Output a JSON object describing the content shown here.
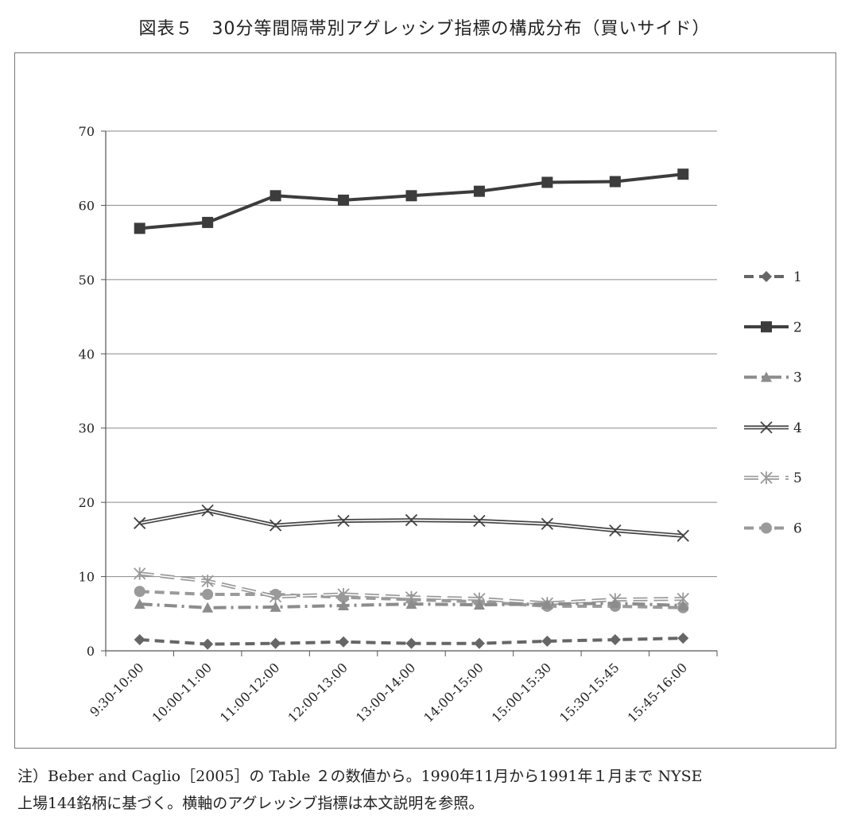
{
  "title": "図表５　30分等間隔帯別アグレッシブ指標の構成分布（買いサイド）",
  "note": {
    "line1": "注）Beber and Caglio［2005］の Table ２の数値から。1990年11月から1991年１月まで NYSE",
    "line2": "上場144銘柄に基づく。横軸のアグレッシブ指標は本文説明を参照。"
  },
  "chart_data": {
    "type": "line",
    "title": "図表５　30分等間隔帯別アグレッシブ指標の構成分布（買いサイド）",
    "xlabel": "",
    "ylabel": "",
    "categories": [
      "9:30-10:00",
      "10:00-11:00",
      "11:00-12:00",
      "12:00-13:00",
      "13:00-14:00",
      "14:00-15:00",
      "15:00-15:30",
      "15:30-15:45",
      "15:45-16:00"
    ],
    "ylim": [
      0,
      70
    ],
    "yticks": [
      0,
      10,
      20,
      30,
      40,
      50,
      60,
      70
    ],
    "grid": "horizontal",
    "legend_position": "right",
    "series": [
      {
        "name": "1",
        "marker": "diamond",
        "line": "dashed",
        "color": "#666666",
        "values": [
          1.5,
          0.9,
          1.0,
          1.2,
          1.0,
          1.0,
          1.3,
          1.5,
          1.7
        ]
      },
      {
        "name": "2",
        "marker": "square",
        "line": "solid",
        "color": "#3c3c3c",
        "values": [
          56.9,
          57.7,
          61.3,
          60.7,
          61.3,
          61.9,
          63.1,
          63.2,
          64.2
        ]
      },
      {
        "name": "3",
        "marker": "triangle",
        "line": "dash-dot",
        "color": "#8c8c8c",
        "values": [
          6.3,
          5.8,
          5.9,
          6.1,
          6.3,
          6.2,
          6.3,
          6.4,
          6.1
        ]
      },
      {
        "name": "4",
        "marker": "x",
        "line": "double",
        "color": "#444444",
        "values": [
          17.2,
          18.9,
          16.9,
          17.5,
          17.6,
          17.5,
          17.1,
          16.2,
          15.5
        ]
      },
      {
        "name": "5",
        "marker": "star",
        "line": "double-dashed",
        "color": "#999999",
        "values": [
          10.4,
          9.4,
          7.3,
          7.6,
          7.2,
          7.0,
          6.4,
          6.9,
          7.0
        ]
      },
      {
        "name": "6",
        "marker": "circle",
        "line": "dashed",
        "color": "#9a9a9a",
        "values": [
          8.0,
          7.6,
          7.6,
          7.2,
          6.9,
          6.6,
          6.0,
          6.0,
          5.8
        ]
      }
    ]
  }
}
